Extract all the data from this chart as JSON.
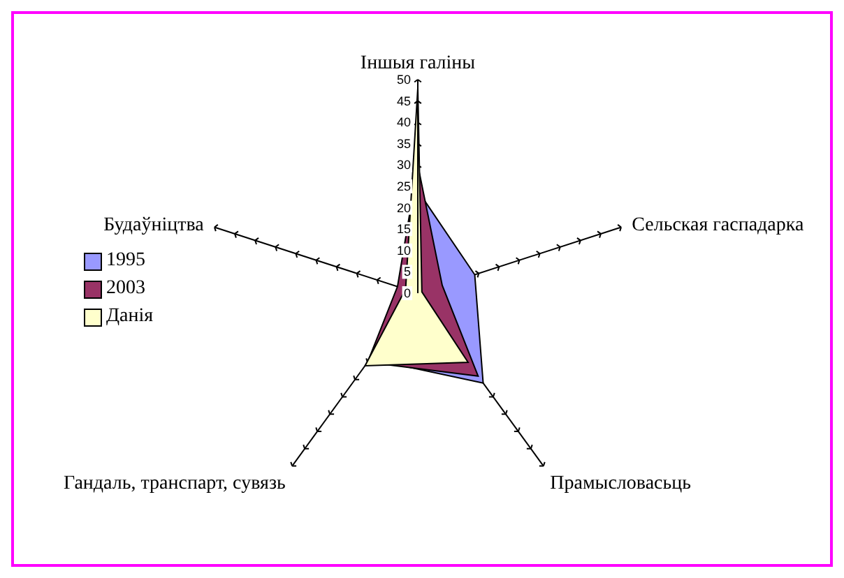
{
  "chart_data": {
    "type": "radar",
    "categories": [
      "Іншыя галіны",
      "Сельская гаспадарка",
      "Прамысловасьць",
      "Гандаль, транспарт, сувязь",
      "Будаўніцтва"
    ],
    "series": [
      {
        "name": "1995",
        "color": "#9999ff",
        "values": [
          24,
          14,
          26,
          19,
          4
        ]
      },
      {
        "name": "2003",
        "color": "#993366",
        "values": [
          30,
          6,
          24,
          20,
          5
        ]
      },
      {
        "name": "Данія",
        "color": "#ffffcc",
        "values": [
          48,
          1,
          20,
          21,
          3
        ]
      }
    ],
    "ylim": [
      0,
      50
    ],
    "yticks": [
      0,
      5,
      10,
      15,
      20,
      25,
      30,
      35,
      40,
      45,
      50
    ],
    "legend": "left",
    "grid": false
  }
}
